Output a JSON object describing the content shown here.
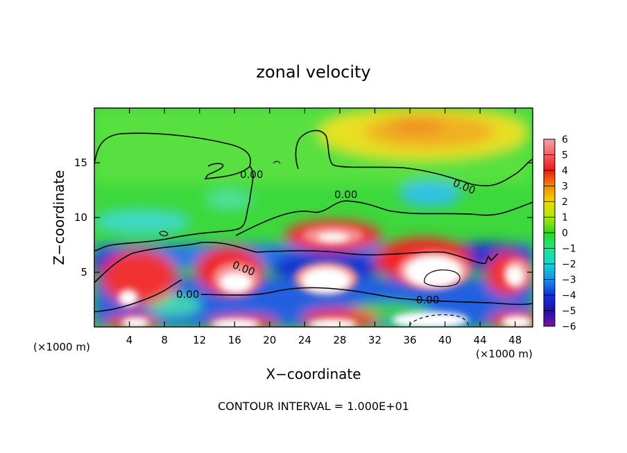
{
  "chart_data": {
    "type": "heatmap",
    "title": "zonal velocity",
    "xlabel": "X−coordinate",
    "ylabel": "Z−coordinate",
    "x_units_left": "(×1000 m)",
    "x_units_right": "(×1000 m)",
    "xlim": [
      0,
      50
    ],
    "ylim": [
      0,
      20
    ],
    "x_ticks": [
      4,
      8,
      12,
      16,
      20,
      24,
      28,
      32,
      36,
      40,
      44,
      48
    ],
    "y_ticks": [
      5,
      10,
      15
    ],
    "colorbar": {
      "range": [
        -6,
        6
      ],
      "ticks": [
        "6",
        "5",
        "4",
        "3",
        "2",
        "1",
        "0",
        "−1",
        "−2",
        "−3",
        "−4",
        "−5",
        "−6"
      ]
    },
    "contour_labels": [
      "0.00",
      "0.00",
      "0.00",
      "0.00",
      "0.00"
    ],
    "footer": "CONTOUR INTERVAL = 1.000E+01"
  }
}
